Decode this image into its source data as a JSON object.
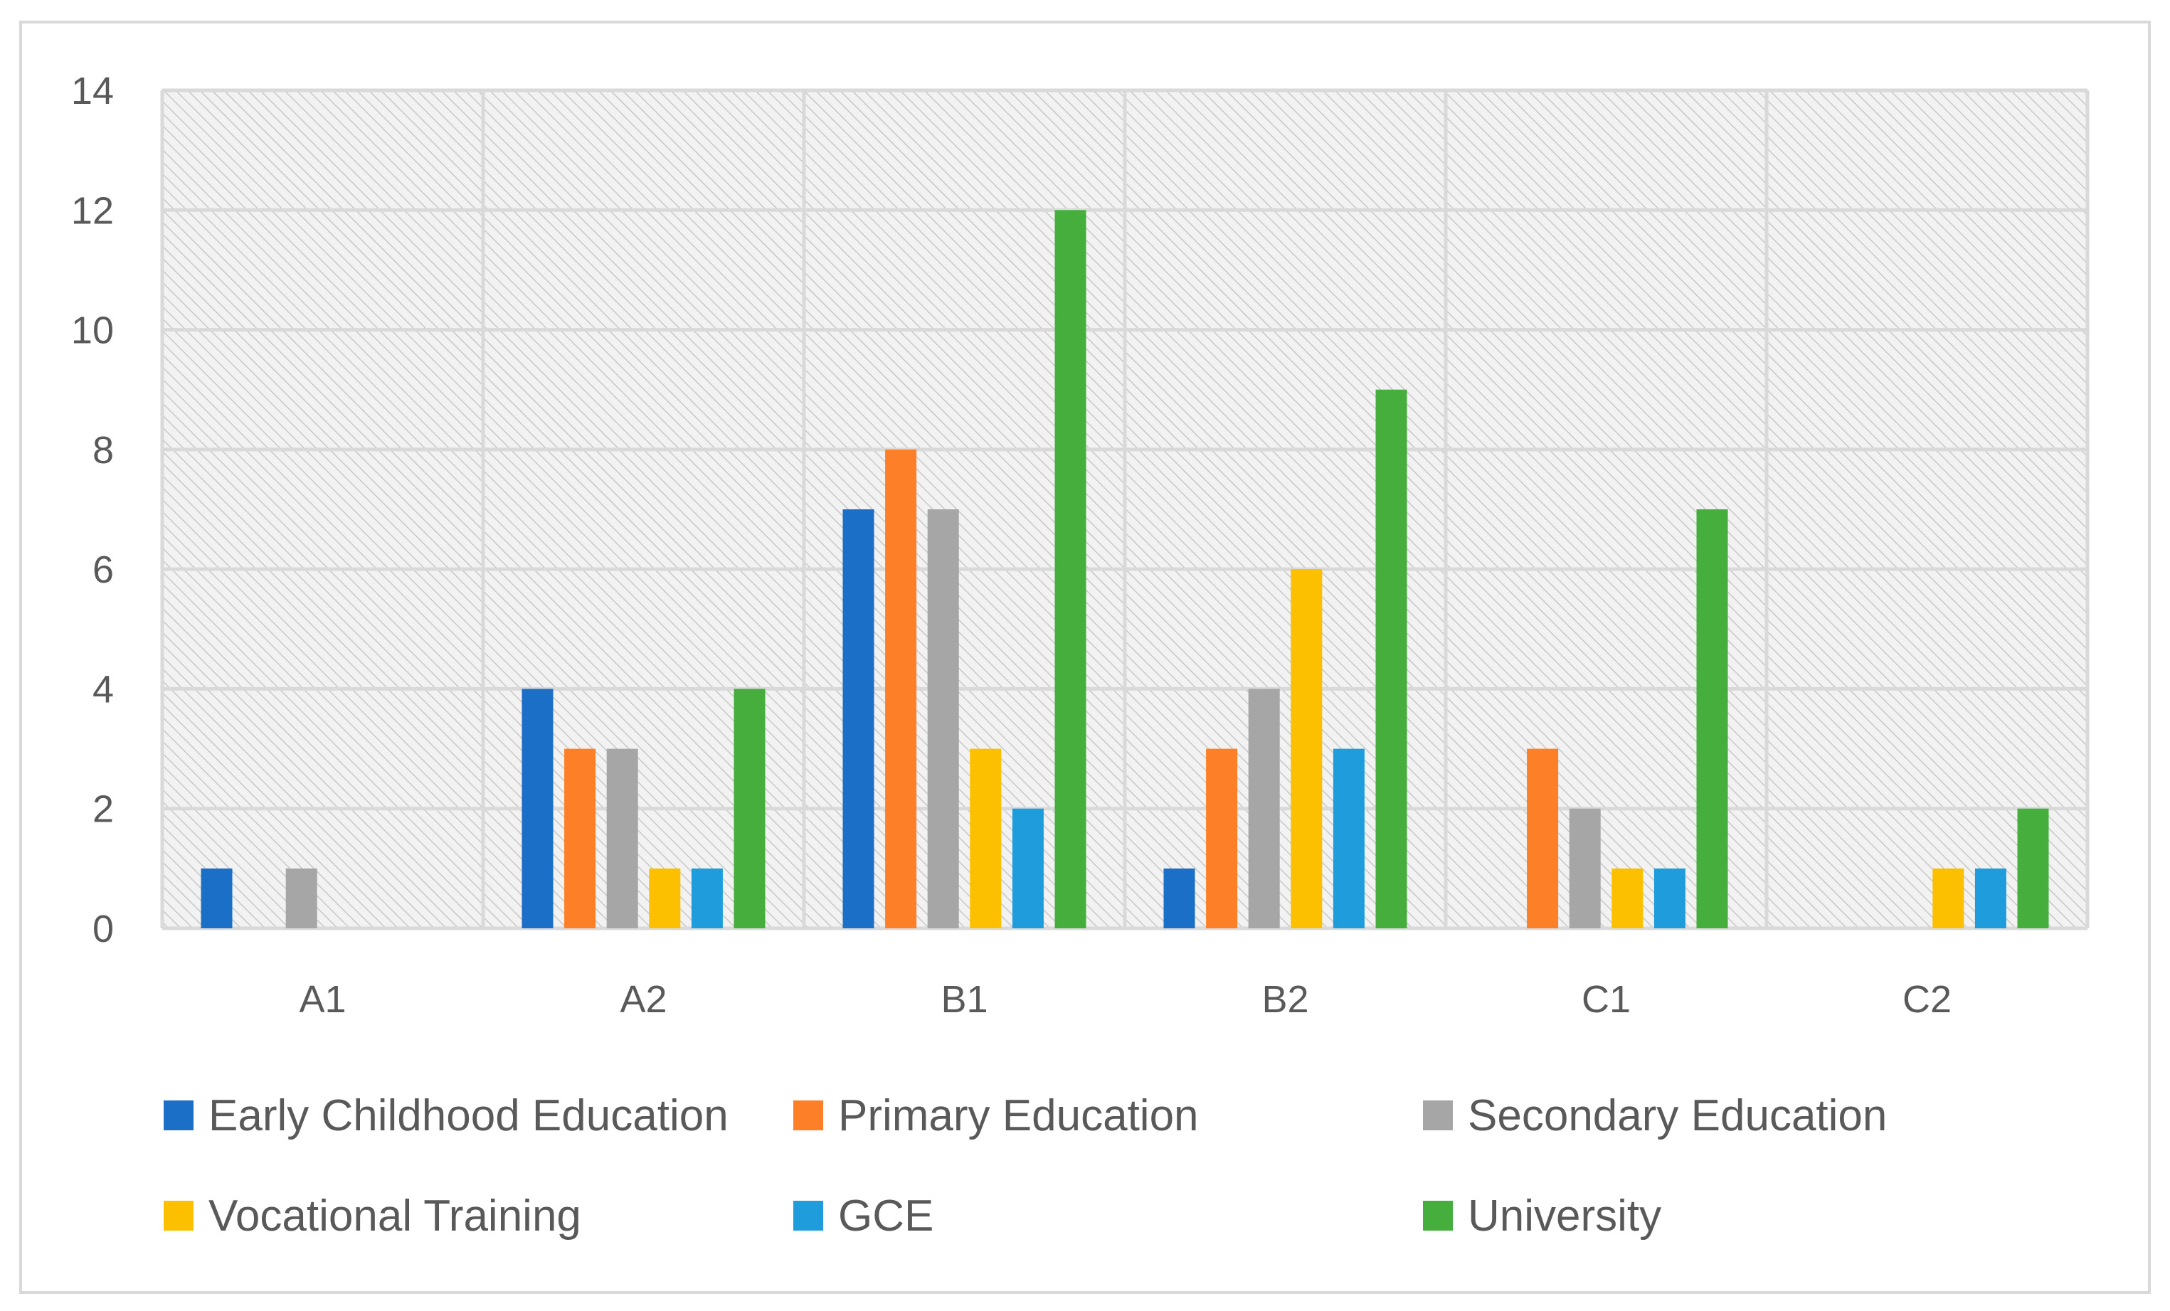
{
  "chart_data": {
    "type": "bar",
    "title": "",
    "xlabel": "",
    "ylabel": "",
    "categories": [
      "A1",
      "A2",
      "B1",
      "B2",
      "C1",
      "C2"
    ],
    "ylim": [
      0,
      14
    ],
    "yticks": [
      0,
      2,
      4,
      6,
      8,
      10,
      12,
      14
    ],
    "grid": true,
    "legend_position": "bottom",
    "series": [
      {
        "name": "Early Childhood Education",
        "color": "#1b6fc6",
        "values": [
          1,
          4,
          7,
          1,
          0,
          0
        ]
      },
      {
        "name": "Primary Education",
        "color": "#fd7f27",
        "values": [
          0,
          3,
          8,
          3,
          3,
          0
        ]
      },
      {
        "name": "Secondary Education",
        "color": "#a6a6a6",
        "values": [
          1,
          3,
          7,
          4,
          2,
          0
        ]
      },
      {
        "name": "Vocational Training",
        "color": "#fdc000",
        "values": [
          0,
          1,
          3,
          6,
          1,
          1
        ]
      },
      {
        "name": "GCE",
        "color": "#1e9cdc",
        "values": [
          0,
          1,
          2,
          3,
          1,
          1
        ]
      },
      {
        "name": "University",
        "color": "#45ae3c",
        "values": [
          0,
          4,
          12,
          9,
          7,
          2
        ]
      }
    ]
  }
}
